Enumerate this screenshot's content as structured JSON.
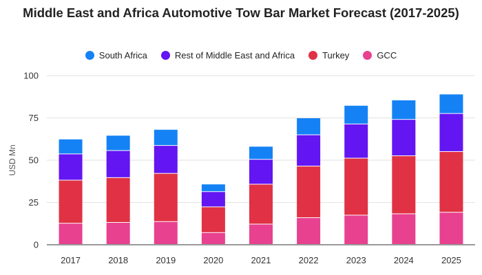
{
  "chart_data": {
    "type": "bar",
    "stacked": true,
    "title": "Middle East and Africa Automotive Tow Bar Market Forecast (2017-2025)",
    "ylabel": "USD Mn",
    "xlabel": "",
    "ylim": [
      0,
      100
    ],
    "yticks": [
      0,
      25,
      50,
      75,
      100
    ],
    "grid": true,
    "legend_position": "top",
    "categories": [
      "2017",
      "2018",
      "2019",
      "2020",
      "2021",
      "2022",
      "2023",
      "2024",
      "2025"
    ],
    "series": [
      {
        "name": "GCC",
        "color": "#e8418f",
        "values": [
          12.5,
          13,
          13.5,
          7,
          12,
          15.8,
          17.3,
          18.1,
          19
        ]
      },
      {
        "name": "Turkey",
        "color": "#e03244",
        "values": [
          25.5,
          26.5,
          28.5,
          15.2,
          23.6,
          30.5,
          33.7,
          34.3,
          35.9
        ]
      },
      {
        "name": "Rest of Middle East and Africa",
        "color": "#6315f2",
        "values": [
          15.5,
          16,
          16.5,
          9,
          14.7,
          18.5,
          20.2,
          21.5,
          22.5
        ]
      },
      {
        "name": "South Africa",
        "color": "#1482f5",
        "values": [
          8.8,
          9,
          9.5,
          4.5,
          7.7,
          10,
          11,
          11.5,
          11.5
        ]
      }
    ]
  }
}
